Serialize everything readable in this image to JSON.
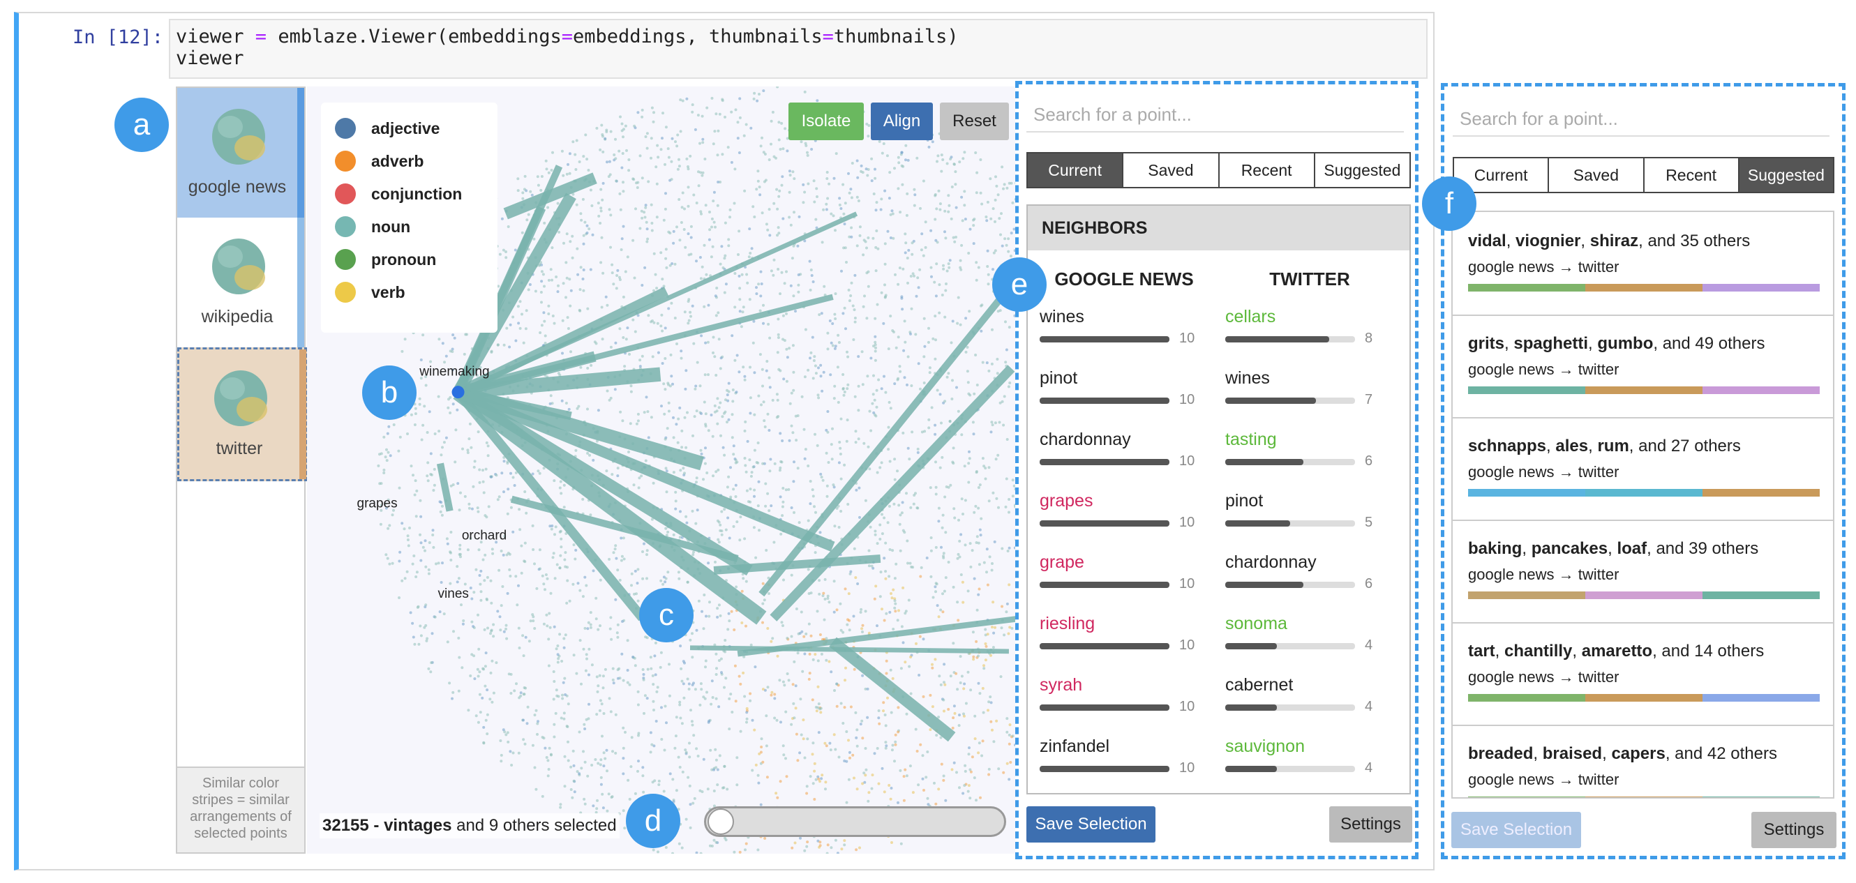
{
  "cell": {
    "prompt": "In [12]:",
    "code": [
      "viewer = emblaze.Viewer(embeddings=embeddings, thumbnails=thumbnails)",
      "viewer"
    ]
  },
  "thumbnails": {
    "items": [
      {
        "label": "google news",
        "bg": "#a9c8ec",
        "stripe": "#5a9be0"
      },
      {
        "label": "wikipedia",
        "bg": "#ffffff",
        "stripe": "#8fbde8"
      },
      {
        "label": "twitter",
        "bg": "#ead8c3",
        "stripe": "#d6a472"
      }
    ],
    "note": "Similar color stripes = similar arrangements of selected points"
  },
  "legend": [
    {
      "label": "adjective",
      "color": "#4e79a7"
    },
    {
      "label": "adverb",
      "color": "#f28e2b"
    },
    {
      "label": "conjunction",
      "color": "#e15759"
    },
    {
      "label": "noun",
      "color": "#76b7b2"
    },
    {
      "label": "pronoun",
      "color": "#59a14f"
    },
    {
      "label": "verb",
      "color": "#edc948"
    }
  ],
  "buttons": [
    {
      "label": "Isolate",
      "color": "#6ab85f"
    },
    {
      "label": "Align",
      "color": "#3d6fb0"
    },
    {
      "label": "Reset",
      "color": "#c4c4c4"
    }
  ],
  "scatter_labels": [
    "winemaking",
    "grapes",
    "orchard",
    "vines"
  ],
  "status": {
    "bold": "32155 - vintages",
    "rest": " and 9 others selected"
  },
  "callouts": [
    "a",
    "b",
    "c",
    "d",
    "e",
    "f"
  ],
  "current_panel": {
    "search": "Search for a point...",
    "tabs": [
      "Current",
      "Saved",
      "Recent",
      "Suggested"
    ],
    "heading": "NEIGHBORS",
    "columns": [
      "GOOGLE NEWS",
      "TWITTER"
    ],
    "rows": [
      [
        {
          "word": "wines",
          "count": 10,
          "color": "#222222"
        },
        {
          "word": "cellars",
          "count": 8,
          "color": "#5cb83a"
        }
      ],
      [
        {
          "word": "pinot",
          "count": 10,
          "color": "#222222"
        },
        {
          "word": "wines",
          "count": 7,
          "color": "#222222"
        }
      ],
      [
        {
          "word": "chardonnay",
          "count": 10,
          "color": "#222222"
        },
        {
          "word": "tasting",
          "count": 6,
          "color": "#5cb83a"
        }
      ],
      [
        {
          "word": "grapes",
          "count": 10,
          "color": "#d0275f"
        },
        {
          "word": "pinot",
          "count": 5,
          "color": "#222222"
        }
      ],
      [
        {
          "word": "grape",
          "count": 10,
          "color": "#d0275f"
        },
        {
          "word": "chardonnay",
          "count": 6,
          "color": "#222222"
        }
      ],
      [
        {
          "word": "riesling",
          "count": 10,
          "color": "#d0275f"
        },
        {
          "word": "sonoma",
          "count": 4,
          "color": "#5cb83a"
        }
      ],
      [
        {
          "word": "syrah",
          "count": 10,
          "color": "#d0275f"
        },
        {
          "word": "cabernet",
          "count": 4,
          "color": "#222222"
        }
      ],
      [
        {
          "word": "zinfandel",
          "count": 10,
          "color": "#222222"
        },
        {
          "word": "sauvignon",
          "count": 4,
          "color": "#5cb83a"
        }
      ]
    ],
    "save": "Save Selection",
    "settings": "Settings"
  },
  "suggested_panel": {
    "search": "Search for a point...",
    "tabs": [
      "Current",
      "Saved",
      "Recent",
      "Suggested"
    ],
    "cards": [
      {
        "title": [
          {
            "t": "vidal",
            "b": true
          },
          {
            "t": ", "
          },
          {
            "t": "viognier",
            "b": true
          },
          {
            "t": ", "
          },
          {
            "t": "shiraz",
            "b": true
          },
          {
            "t": ", and 35 others"
          }
        ],
        "subtitle": "google news → twitter",
        "stripes": [
          "#7fb46a",
          "#c99a5a",
          "#b99be0"
        ]
      },
      {
        "title": [
          {
            "t": "grits",
            "b": true
          },
          {
            "t": ", "
          },
          {
            "t": "spaghetti",
            "b": true
          },
          {
            "t": ", "
          },
          {
            "t": "gumbo",
            "b": true
          },
          {
            "t": ", and 49 others"
          }
        ],
        "subtitle": "google news → twitter",
        "stripes": [
          "#6db3a2",
          "#c99a5a",
          "#c99ad8"
        ]
      },
      {
        "title": [
          {
            "t": "schnapps",
            "b": true
          },
          {
            "t": ", "
          },
          {
            "t": "ales",
            "b": true
          },
          {
            "t": ", "
          },
          {
            "t": "rum",
            "b": true
          },
          {
            "t": ", and 27 others"
          }
        ],
        "subtitle": "google news → twitter",
        "stripes": [
          "#5ab4e0",
          "#5ab8d0",
          "#c99a5a"
        ]
      },
      {
        "title": [
          {
            "t": "baking",
            "b": true
          },
          {
            "t": ", "
          },
          {
            "t": "pancakes",
            "b": true
          },
          {
            "t": ", "
          },
          {
            "t": "loaf",
            "b": true
          },
          {
            "t": ", and 39 others"
          }
        ],
        "subtitle": "google news → twitter",
        "stripes": [
          "#c2a36e",
          "#cf9fd2",
          "#6db3a2"
        ]
      },
      {
        "title": [
          {
            "t": "tart",
            "b": true
          },
          {
            "t": ", "
          },
          {
            "t": "chantilly",
            "b": true
          },
          {
            "t": ", "
          },
          {
            "t": "amaretto",
            "b": true
          },
          {
            "t": ", and 14 others"
          }
        ],
        "subtitle": "google news → twitter",
        "stripes": [
          "#7fb46a",
          "#c99a5a",
          "#8aa8e8"
        ]
      },
      {
        "title": [
          {
            "t": "breaded",
            "b": true
          },
          {
            "t": ", "
          },
          {
            "t": "braised",
            "b": true
          },
          {
            "t": ", "
          },
          {
            "t": "capers",
            "b": true
          },
          {
            "t": ", and 42 others"
          }
        ],
        "subtitle": "google news → twitter",
        "stripes": [
          "#7fb46a",
          "#c99a5a",
          "#6db3a2"
        ]
      }
    ],
    "save": "Save Selection",
    "settings": "Settings"
  }
}
